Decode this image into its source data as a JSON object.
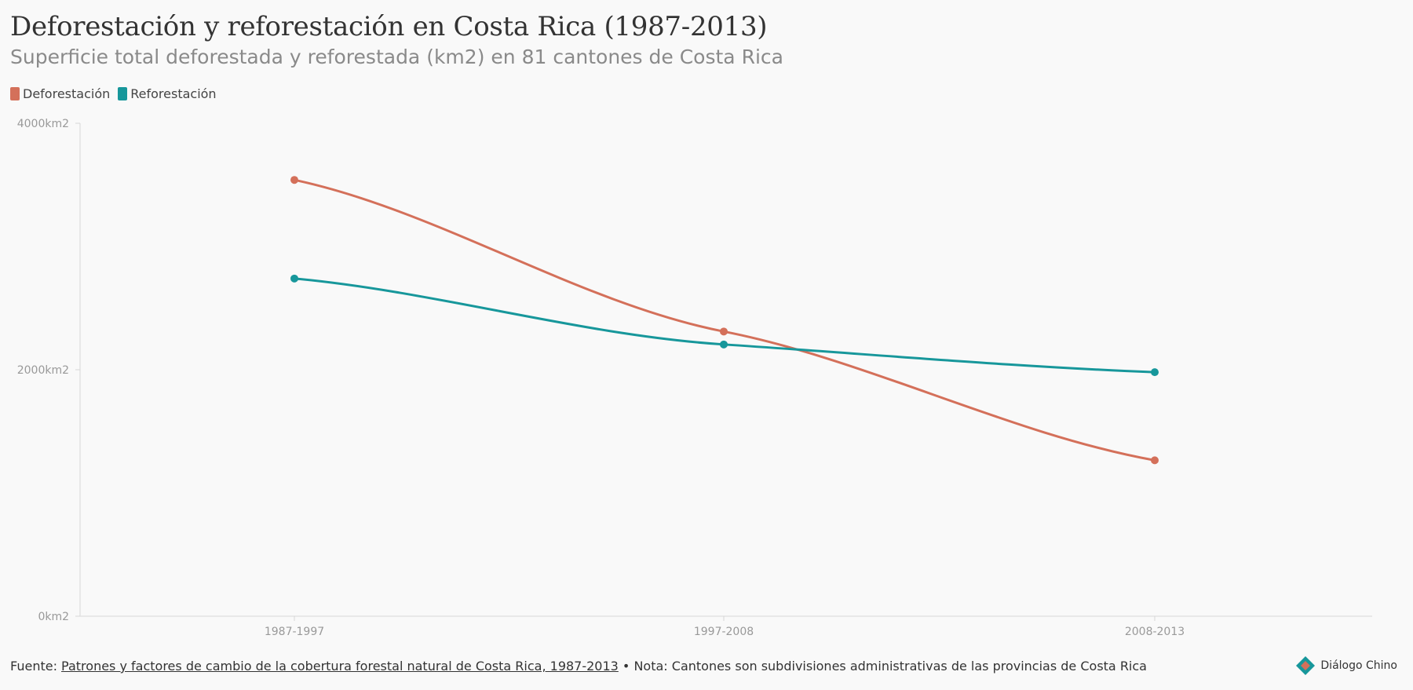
{
  "header": {
    "title": "Deforestación y reforestación en Costa Rica (1987-2013)",
    "subtitle": "Superficie total deforestada y reforestada (km2) en 81 cantones de Costa Rica"
  },
  "chart_data": {
    "type": "line",
    "categories": [
      "1987-1997",
      "1997-2008",
      "2008-2013"
    ],
    "series": [
      {
        "name": "Deforestación",
        "color": "#d4705a",
        "values": [
          3540,
          2310,
          1265
        ]
      },
      {
        "name": "Reforestación",
        "color": "#17979b",
        "values": [
          2740,
          2205,
          1980
        ]
      }
    ],
    "ylim": [
      0,
      4000
    ],
    "yticks": [
      0,
      2000,
      4000
    ],
    "ytick_labels": [
      "0km2",
      "2000km2",
      "4000km2"
    ],
    "xlabel": "",
    "ylabel": "",
    "grid": false,
    "legend_position": "top-left"
  },
  "footer": {
    "source_prefix": "Fuente: ",
    "source_link": "Patrones y factores de cambio de la cobertura forestal natural de Costa Rica, 1987-2013",
    "note": " • Nota: Cantones son subdivisiones administrativas de las provincias de Costa Rica"
  },
  "brand": {
    "name": "Diálogo Chino",
    "icon": "dialogo-chino-logo-icon"
  }
}
